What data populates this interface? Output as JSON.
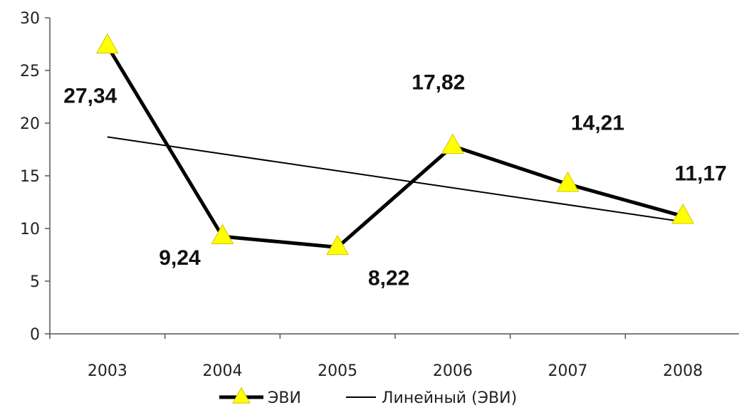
{
  "chart_data": {
    "type": "line",
    "categories": [
      "2003",
      "2004",
      "2005",
      "2006",
      "2007",
      "2008"
    ],
    "series": [
      {
        "name": "ЭВИ",
        "values": [
          27.34,
          9.24,
          8.22,
          17.82,
          14.21,
          11.17
        ],
        "data_labels": [
          "27,34",
          "9,24",
          "8,22",
          "17,82",
          "14,21",
          "11,17"
        ],
        "color": "#000000",
        "marker": "triangle",
        "marker_color": "#ffff00"
      },
      {
        "name": "Линейный (ЭВИ)",
        "type": "trendline-linear",
        "color": "#000000"
      }
    ],
    "ylim": [
      0,
      30
    ],
    "yticks": [
      "0",
      "5",
      "10",
      "15",
      "20",
      "25",
      "30"
    ],
    "grid": false,
    "legend": "bottom"
  }
}
